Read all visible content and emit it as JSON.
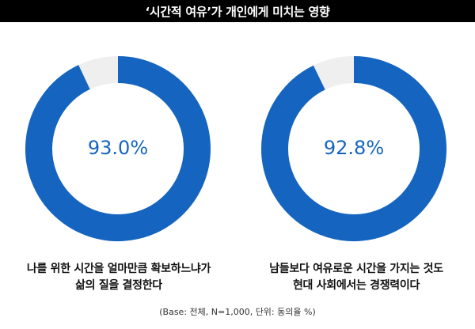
{
  "title": "‘시간적 여유’가 개인에게 미치는 영향",
  "footnote": "(Base: 전체, N=1,000, 단위: 동의율 %)",
  "colors": {
    "primary": "#1565c0",
    "remainder": "#efefef",
    "title_bg": "#000000"
  },
  "chart_data": [
    {
      "type": "pie",
      "center_label": "93.0%",
      "values": [
        93.0,
        7.0
      ],
      "caption_lines": [
        "나를 위한 시간을 얼마만큼 확보하느냐가",
        "삶의 질을 결정한다"
      ]
    },
    {
      "type": "pie",
      "center_label": "92.8%",
      "values": [
        92.8,
        7.2
      ],
      "caption_lines": [
        "남들보다 여유로운 시간을 가지는 것도",
        "현대 사회에서는 경쟁력이다"
      ]
    }
  ]
}
